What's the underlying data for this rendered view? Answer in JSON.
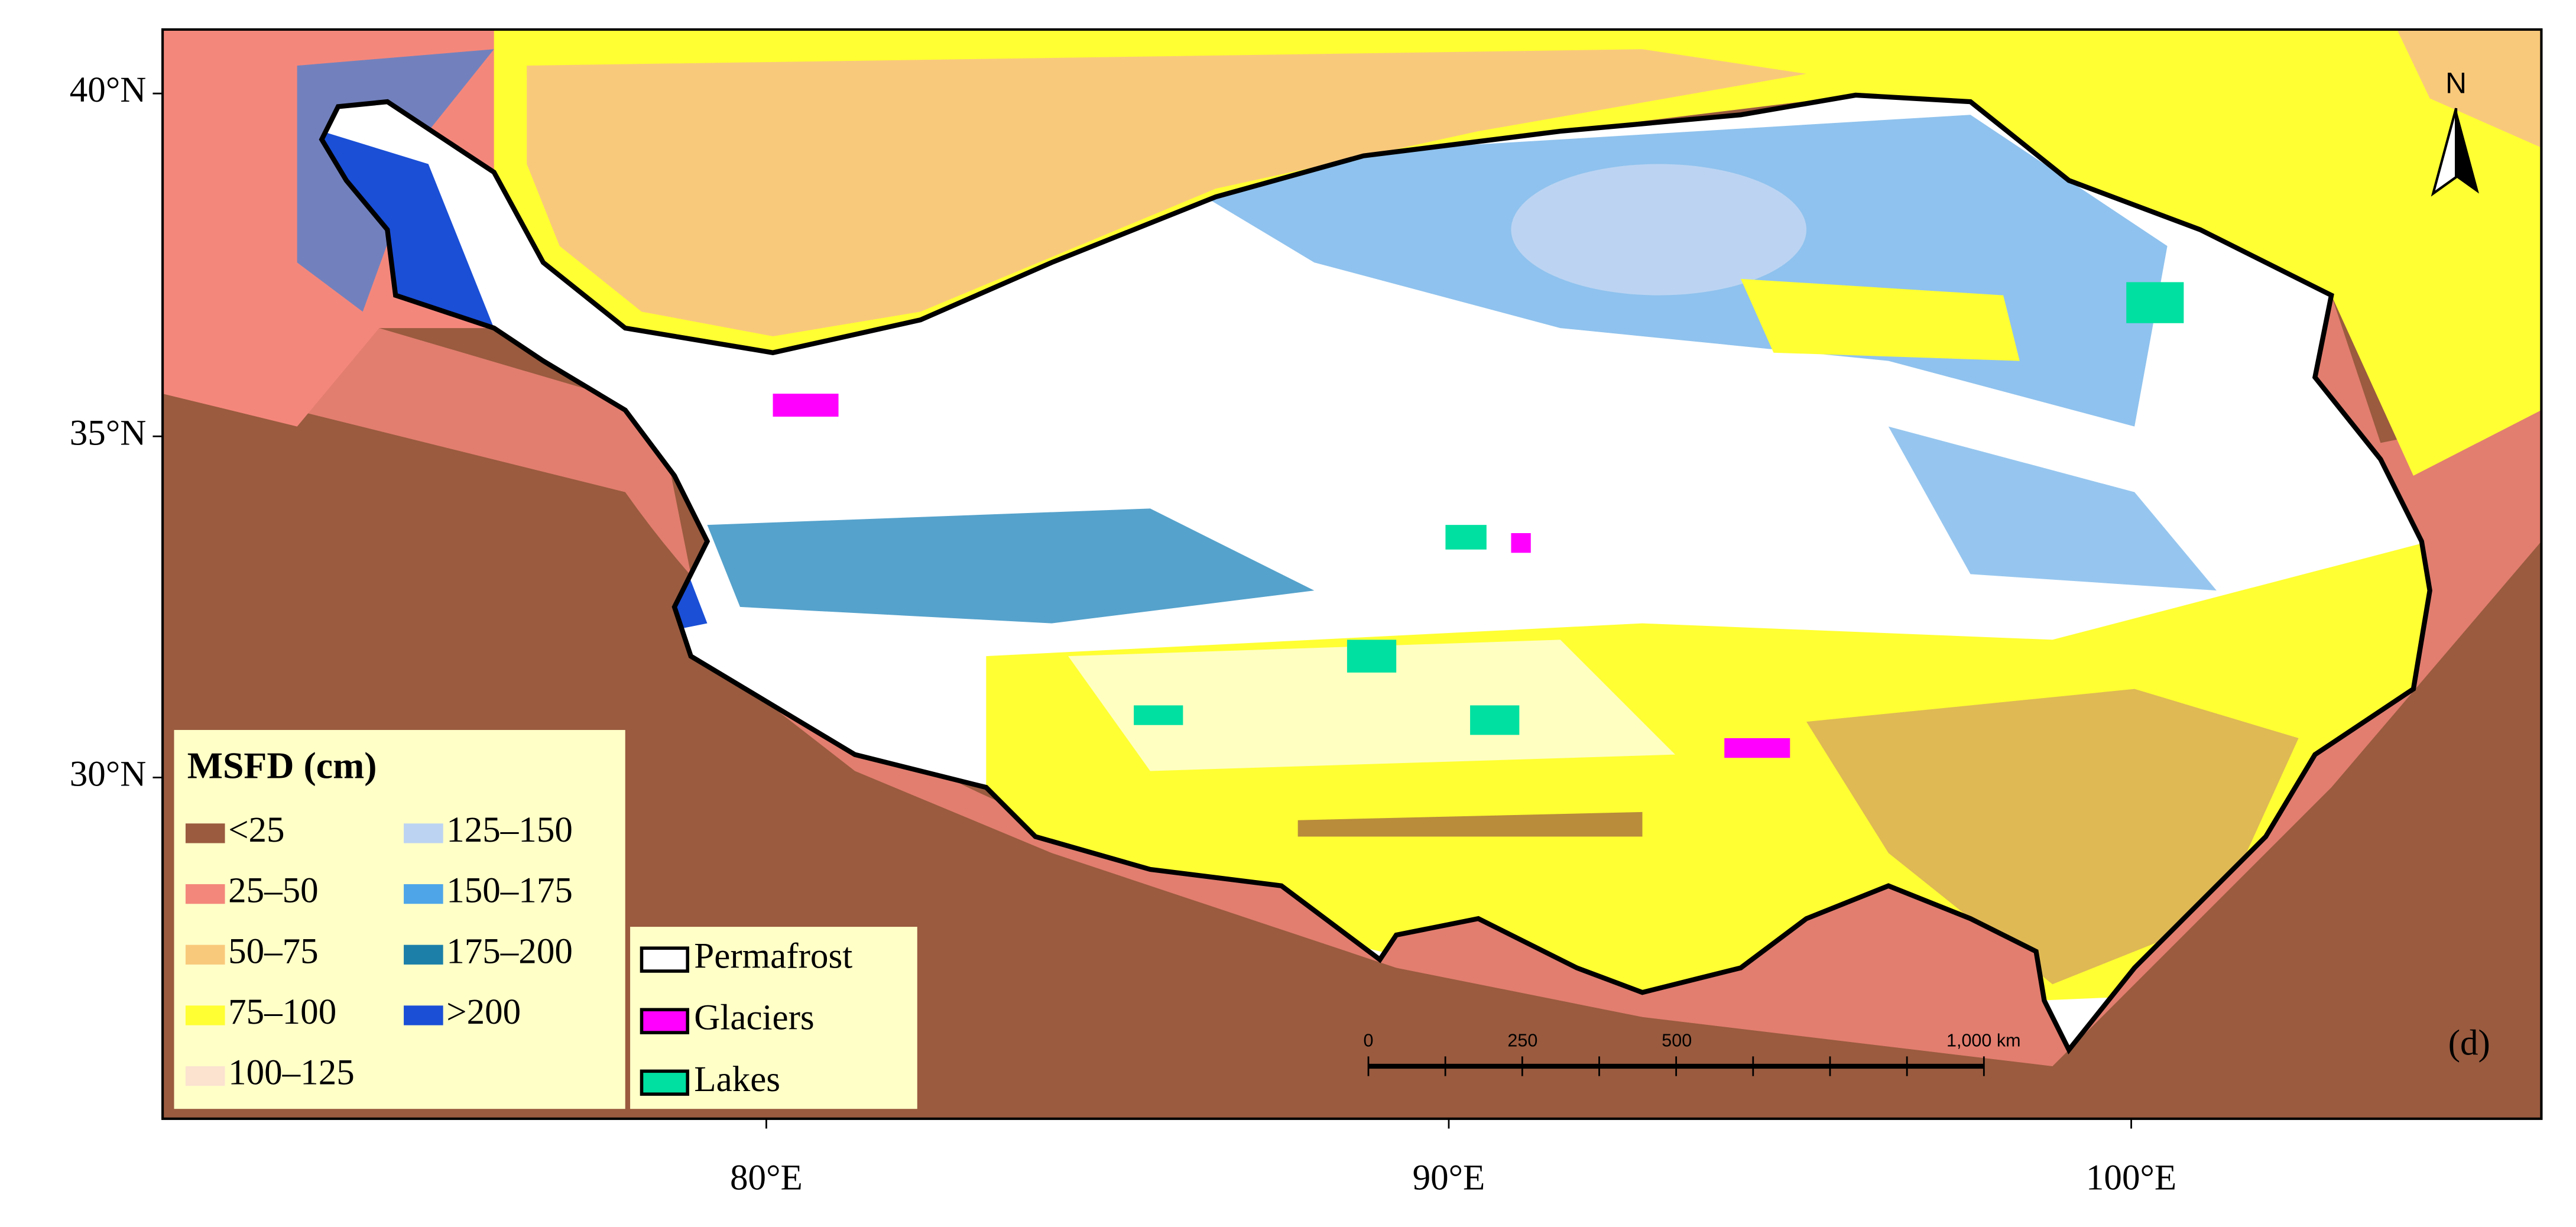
{
  "latitude_labels": [
    "40°N",
    "35°N",
    "30°N"
  ],
  "longitude_labels": [
    "80°E",
    "90°E",
    "100°E"
  ],
  "legend": {
    "title": "MSFD (cm)",
    "items": [
      {
        "label": "<25",
        "color": "#9a5b3f"
      },
      {
        "label": "25–50",
        "color": "#f4877c"
      },
      {
        "label": "50–75",
        "color": "#f9c97b"
      },
      {
        "label": "75–100",
        "color": "#ffff33"
      },
      {
        "label": "100–125",
        "color": "#fbe3d0"
      },
      {
        "label": "125–150",
        "color": "#bcd4f2"
      },
      {
        "label": "150–175",
        "color": "#4ea6e8"
      },
      {
        "label": "175–200",
        "color": "#1c7fa8"
      },
      {
        "label": ">200",
        "color": "#1a4fd6"
      }
    ]
  },
  "overlay_legend": {
    "items": [
      {
        "label": "Permafrost",
        "color": "#ffffff"
      },
      {
        "label": "Glaciers",
        "color": "#ff00ff"
      },
      {
        "label": "Lakes",
        "color": "#00e0a0"
      }
    ]
  },
  "scale_bar": {
    "labels": [
      "0",
      "250",
      "500",
      "1,000 km"
    ]
  },
  "north_arrow": "N",
  "panel_label": "(d)"
}
